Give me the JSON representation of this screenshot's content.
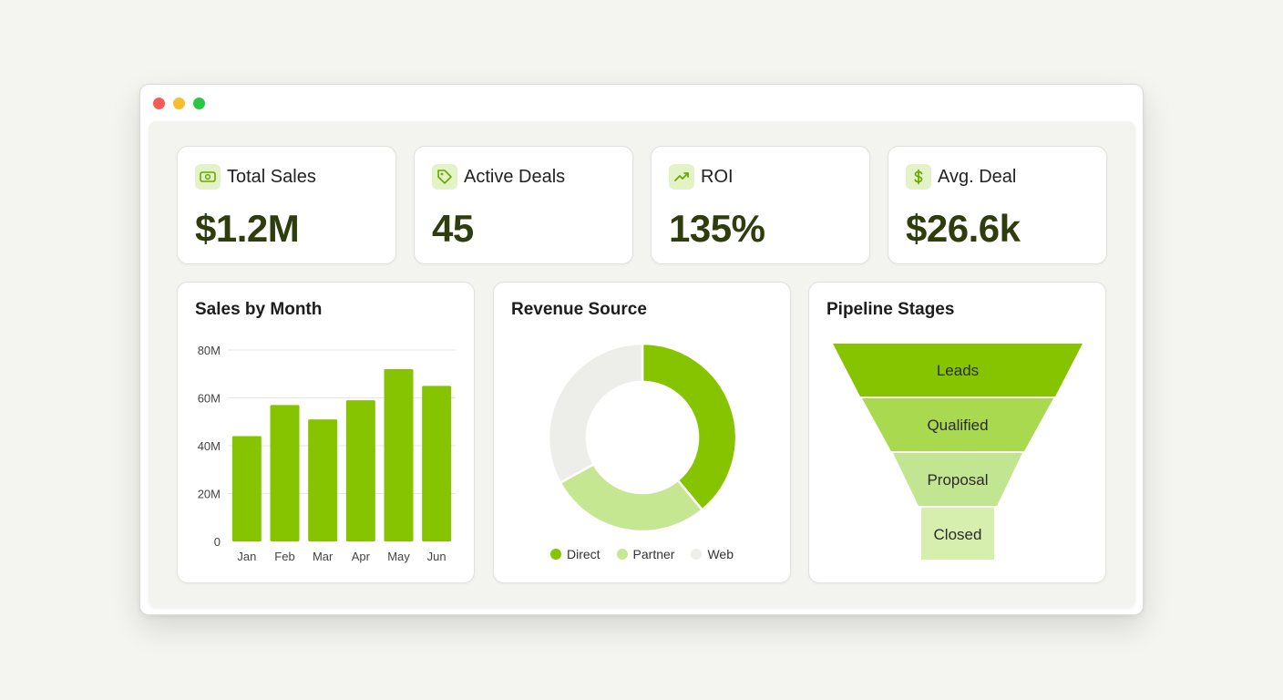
{
  "window": {
    "controls": [
      "close",
      "minimize",
      "maximize"
    ]
  },
  "colors": {
    "accent": "#86c400",
    "accent_dark": "#2e3c0e",
    "partner": "#c6e792",
    "web": "#ededea",
    "close": "#f05f57",
    "minimize": "#f6be2f",
    "maximize": "#2ac840"
  },
  "kpis": [
    {
      "label": "Total Sales",
      "value": "$1.2M",
      "icon": "banknote-icon"
    },
    {
      "label": "Active Deals",
      "value": "45",
      "icon": "tag-icon"
    },
    {
      "label": "ROI",
      "value": "135%",
      "icon": "trending-up-icon"
    },
    {
      "label": "Avg. Deal",
      "value": "$26.6k",
      "icon": "dollar-icon"
    }
  ],
  "sales_chart": {
    "title": "Sales by Month"
  },
  "revenue_chart": {
    "title": "Revenue Source",
    "legend": [
      "Direct",
      "Partner",
      "Web"
    ]
  },
  "pipeline": {
    "title": "Pipeline Stages",
    "stages": [
      "Leads",
      "Qualified",
      "Proposal",
      "Closed"
    ]
  },
  "chart_data": [
    {
      "type": "bar",
      "title": "Sales by Month",
      "categories": [
        "Jan",
        "Feb",
        "Mar",
        "Apr",
        "May",
        "Jun"
      ],
      "values": [
        44,
        57,
        51,
        59,
        72,
        65
      ],
      "y_ticks": [
        "0",
        "20M",
        "40M",
        "60M",
        "80M"
      ],
      "ylim": [
        0,
        80
      ],
      "grid": true
    },
    {
      "type": "pie",
      "title": "Revenue Source",
      "labels": [
        "Direct",
        "Partner",
        "Web"
      ],
      "values": [
        39,
        28,
        33
      ],
      "legend": "bottom"
    }
  ]
}
